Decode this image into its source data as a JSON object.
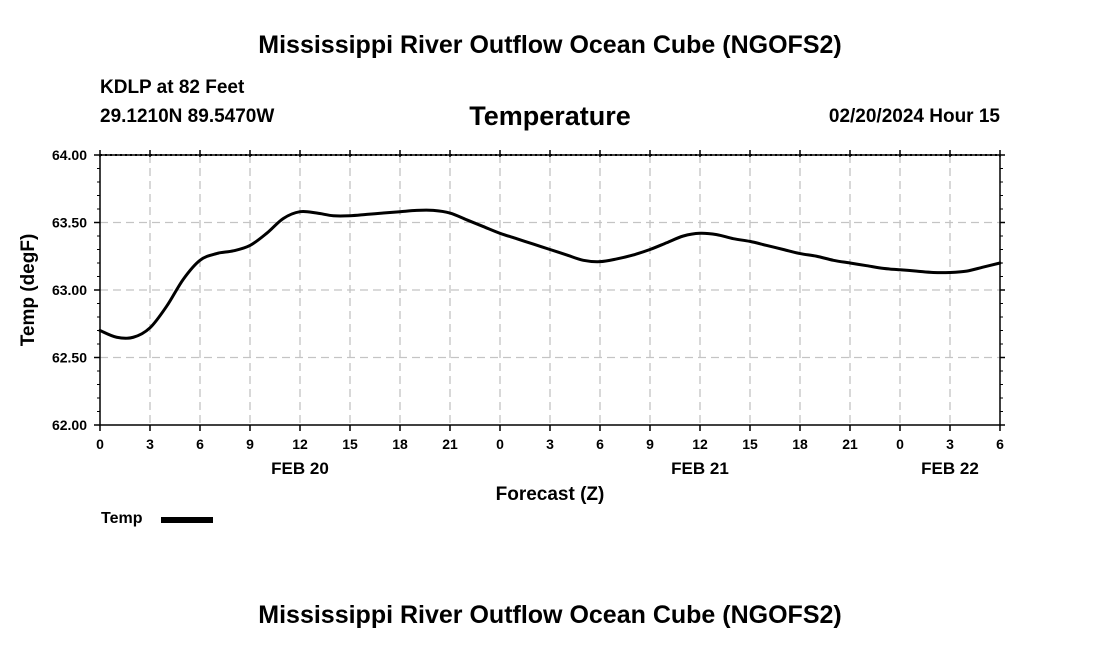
{
  "page": {
    "title": "Mississippi River Outflow Ocean Cube (NGOFS2)",
    "footer_title": "Mississippi River Outflow Ocean Cube (NGOFS2)",
    "station": "KDLP at 82 Feet",
    "coordinates": "29.1210N  89.5470W",
    "variable": "Temperature",
    "datetime": "02/20/2024 Hour 15"
  },
  "chart_data": {
    "type": "line",
    "title": "Temperature",
    "xlabel": "Forecast (Z)",
    "ylabel": "Temp (degF)",
    "ylim": [
      62.0,
      64.0
    ],
    "yticks": [
      62.0,
      62.5,
      63.0,
      63.5,
      64.0
    ],
    "ytick_labels": [
      "62.00",
      "62.50",
      "63.00",
      "63.50",
      "64.00"
    ],
    "xlim": [
      0,
      54
    ],
    "xticks": [
      0,
      3,
      6,
      9,
      12,
      15,
      18,
      21,
      24,
      27,
      30,
      33,
      36,
      39,
      42,
      45,
      48,
      51,
      54
    ],
    "xtick_labels": [
      "0",
      "3",
      "6",
      "9",
      "12",
      "15",
      "18",
      "21",
      "0",
      "3",
      "6",
      "9",
      "12",
      "15",
      "18",
      "21",
      "0",
      "3",
      "6"
    ],
    "date_labels": [
      {
        "label": "FEB 20",
        "x": 12
      },
      {
        "label": "FEB 21",
        "x": 36
      },
      {
        "label": "FEB 22",
        "x": 51
      }
    ],
    "grid": true,
    "legend": {
      "position": "bottom-left",
      "entries": [
        "Temp"
      ]
    },
    "series": [
      {
        "name": "Temp",
        "color": "#000000",
        "x": [
          0,
          1,
          2,
          3,
          4,
          5,
          6,
          7,
          8,
          9,
          10,
          11,
          12,
          13,
          14,
          15,
          16,
          17,
          18,
          19,
          20,
          21,
          22,
          23,
          24,
          25,
          26,
          27,
          28,
          29,
          30,
          31,
          32,
          33,
          34,
          35,
          36,
          37,
          38,
          39,
          40,
          41,
          42,
          43,
          44,
          45,
          46,
          47,
          48,
          49,
          50,
          51,
          52,
          53,
          54
        ],
        "values": [
          62.7,
          62.65,
          62.65,
          62.72,
          62.88,
          63.08,
          63.22,
          63.27,
          63.29,
          63.33,
          63.42,
          63.53,
          63.58,
          63.57,
          63.55,
          63.55,
          63.56,
          63.57,
          63.58,
          63.59,
          63.59,
          63.57,
          63.52,
          63.47,
          63.42,
          63.38,
          63.34,
          63.3,
          63.26,
          63.22,
          63.21,
          63.23,
          63.26,
          63.3,
          63.35,
          63.4,
          63.42,
          63.41,
          63.38,
          63.36,
          63.33,
          63.3,
          63.27,
          63.25,
          63.22,
          63.2,
          63.18,
          63.16,
          63.15,
          63.14,
          63.13,
          63.13,
          63.14,
          63.17,
          63.2
        ]
      }
    ]
  }
}
